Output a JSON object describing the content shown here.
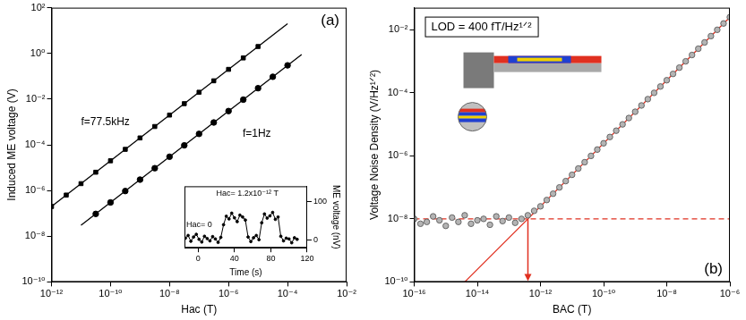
{
  "chart_data": [
    {
      "type": "scatter",
      "panel_label": "(a)",
      "x_label": "Hac (T)",
      "y_label": "Induced ME voltage (V)",
      "log": true,
      "grid": false,
      "legend": "none",
      "xlim": [
        1e-12,
        0.01
      ],
      "xticks": [
        {
          "value": 1e-12,
          "label": "10⁻¹²"
        },
        {
          "value": 1e-10,
          "label": "10⁻¹⁰"
        },
        {
          "value": 1e-08,
          "label": "10⁻⁸"
        },
        {
          "value": 1e-06,
          "label": "10⁻⁶"
        },
        {
          "value": 0.0001,
          "label": "10⁻⁴"
        },
        {
          "value": 0.01,
          "label": "10⁻²"
        }
      ],
      "ylim": [
        1e-10,
        100
      ],
      "yticks": [
        {
          "value": 1e-10,
          "label": "10⁻¹⁰"
        },
        {
          "value": 1e-08,
          "label": "10⁻⁸"
        },
        {
          "value": 1e-06,
          "label": "10⁻⁶"
        },
        {
          "value": 0.0001,
          "label": "10⁻⁴"
        },
        {
          "value": 0.01,
          "label": "10⁻²"
        },
        {
          "value": 1,
          "label": "10⁰"
        },
        {
          "value": 100,
          "label": "10²"
        }
      ],
      "series": [
        {
          "type": "scatter",
          "marker": "square",
          "line_style": "none",
          "color": "#000000",
          "x": [
            1e-12,
            3.16e-12,
            1e-11,
            3.16e-11,
            1e-10,
            3.16e-10,
            1e-09,
            3.16e-09,
            1e-08,
            3.16e-08,
            1e-07,
            3.16e-07,
            1e-06,
            3.16e-06,
            1e-05
          ],
          "values": [
            2e-07,
            6.32e-07,
            2e-06,
            6.32e-06,
            2e-05,
            6.32e-05,
            0.0002,
            0.000632,
            0.002,
            0.00632,
            0.02,
            0.0632,
            0.2,
            0.632,
            2
          ]
        },
        {
          "type": "scatter",
          "marker": "circle",
          "line_style": "none",
          "color": "#000000",
          "x": [
            3.16e-11,
            1e-10,
            3.16e-10,
            1e-09,
            3.16e-09,
            1e-08,
            3.16e-08,
            1e-07,
            3.16e-07,
            1e-06,
            3.16e-06,
            1e-05,
            3.16e-05,
            0.0001
          ],
          "values": [
            9.48e-08,
            3e-07,
            9.48e-07,
            3e-06,
            9.48e-06,
            3e-05,
            9.48e-05,
            0.0003,
            0.000948,
            0.003,
            0.00948,
            0.03,
            0.0948,
            0.3
          ]
        },
        {
          "type": "line",
          "marker": "none",
          "line_style": "solid",
          "color": "#000000",
          "x": [
            1e-12,
            0.0001
          ],
          "values": [
            2e-07,
            20
          ]
        },
        {
          "type": "line",
          "marker": "none",
          "line_style": "solid",
          "color": "#000000",
          "x": [
            1e-11,
            0.0003
          ],
          "values": [
            3e-08,
            0.9
          ]
        }
      ],
      "annotations": [
        {
          "text": "f=77.5kHz",
          "x": 1e-11,
          "y": 0.001
        },
        {
          "text": "f=1Hz",
          "x": 3e-06,
          "y": 0.0003
        }
      ],
      "inset": {
        "type": "line",
        "x_label": "Time (s)",
        "y_label": "ME voltage (nV)",
        "grid": false,
        "xlim": [
          -15,
          120
        ],
        "xticks": [
          0,
          40,
          80,
          120
        ],
        "ylim": [
          -20,
          140
        ],
        "yticks": [
          0,
          100
        ],
        "series": [
          {
            "type": "line",
            "marker": "circle",
            "line_style": "solid",
            "color": "#000000",
            "x": [
              -14,
              -11,
              -8,
              -5,
              -2,
              1,
              4,
              7,
              10,
              13,
              16,
              19,
              22,
              25,
              28,
              31,
              34,
              37,
              40,
              43,
              46,
              49,
              52,
              55,
              58,
              61,
              64,
              67,
              70,
              73,
              76,
              79,
              82,
              85,
              88,
              91,
              94,
              97,
              100,
              103,
              106,
              109
            ],
            "values": [
              5,
              12,
              -3,
              8,
              15,
              2,
              -5,
              10,
              4,
              -2,
              9,
              3,
              -6,
              7,
              40,
              62,
              55,
              70,
              58,
              48,
              65,
              60,
              52,
              8,
              -4,
              6,
              12,
              1,
              45,
              68,
              57,
              63,
              72,
              54,
              60,
              10,
              -2,
              5,
              3,
              -7,
              6,
              2
            ]
          }
        ],
        "annotations": [
          {
            "text": "Hac= 1.2x10⁻¹² T",
            "x": 20,
            "y": 122
          },
          {
            "text": "Hac= 0",
            "x": -13,
            "y": 40
          }
        ]
      }
    },
    {
      "type": "scatter",
      "panel_label": "(b)",
      "x_label": "BAC (T)",
      "y_label": "Voltage Noise Density (V/Hz¹ᐟ²)",
      "lod_label": "LOD = 400 fT/Hz¹ᐟ²",
      "log": true,
      "grid": false,
      "legend": "none",
      "xlim": [
        1e-16,
        1e-06
      ],
      "xticks": [
        {
          "value": 1e-16,
          "label": "10⁻¹⁶"
        },
        {
          "value": 1e-14,
          "label": "10⁻¹⁴"
        },
        {
          "value": 1e-12,
          "label": "10⁻¹²"
        },
        {
          "value": 1e-10,
          "label": "10⁻¹⁰"
        },
        {
          "value": 1e-08,
          "label": "10⁻⁸"
        },
        {
          "value": 1e-06,
          "label": "10⁻⁶"
        }
      ],
      "ylim": [
        1e-10,
        0.05
      ],
      "yticks": [
        {
          "value": 1e-10,
          "label": "10⁻¹⁰"
        },
        {
          "value": 1e-08,
          "label": "10⁻⁸"
        },
        {
          "value": 1e-06,
          "label": "10⁻⁶"
        },
        {
          "value": 0.0001,
          "label": "10⁻⁴"
        },
        {
          "value": 0.01,
          "label": "10⁻²"
        }
      ],
      "series": [
        {
          "type": "scatter",
          "marker": "circle",
          "line_style": "none",
          "color": "#b4b4b4",
          "x": [
            1e-16,
            1.58e-16,
            2.51e-16,
            3.98e-16,
            6.31e-16,
            1e-15,
            1.58e-15,
            2.51e-15,
            3.98e-15,
            6.31e-15,
            1e-14,
            1.58e-14,
            2.51e-14,
            3.98e-14,
            6.31e-14,
            1e-13,
            1.58e-13,
            2.51e-13,
            3.98e-13,
            6.31e-13,
            1e-12,
            1.58e-12,
            2.51e-12,
            3.98e-12,
            6.31e-12,
            1e-11,
            1.58e-11,
            2.51e-11,
            3.98e-11,
            6.31e-11,
            1e-10,
            1.58e-10,
            2.51e-10,
            3.98e-10,
            6.31e-10,
            1e-09,
            1.58e-09,
            2.51e-09,
            3.98e-09,
            6.31e-09,
            1e-08,
            1.58e-08,
            2.51e-08,
            3.98e-08,
            6.31e-08,
            1e-07,
            1.58e-07,
            2.51e-07,
            3.98e-07,
            6.31e-07,
            1e-06
          ],
          "values": [
            1e-08,
            7e-09,
            8e-09,
            1.2e-08,
            9e-09,
            6e-09,
            1.1e-08,
            8e-09,
            1.3e-08,
            7e-09,
            9e-09,
            1e-08,
            6.5e-09,
            1.2e-08,
            8.5e-09,
            1.1e-08,
            7.5e-09,
            1e-08,
            1.3e-08,
            1.8e-08,
            2.5e-08,
            3.96e-08,
            6.28e-08,
            9.95e-08,
            1.58e-07,
            2.5e-07,
            3.96e-07,
            6.28e-07,
            9.95e-07,
            1.58e-06,
            2.5e-06,
            3.96e-06,
            6.28e-06,
            9.95e-06,
            1.58e-05,
            2.5e-05,
            3.96e-05,
            6.28e-05,
            9.95e-05,
            0.000158,
            0.00025,
            0.000396,
            0.000628,
            0.000995,
            0.00158,
            0.0025,
            0.00396,
            0.00628,
            0.00995,
            0.0158,
            0.025
          ]
        },
        {
          "type": "line",
          "marker": "none",
          "line_style": "solid",
          "color": "#e03020",
          "x": [
            4e-15,
            1e-06
          ],
          "values": [
            1e-10,
            0.025
          ]
        },
        {
          "type": "line",
          "marker": "none",
          "line_style": "dashed",
          "color": "#e03020",
          "x": [
            1e-16,
            1e-06
          ],
          "values": [
            1e-08,
            1e-08
          ]
        }
      ],
      "lod_marker": {
        "x": 4e-13,
        "y": 1e-08,
        "color": "#e03020"
      }
    }
  ]
}
